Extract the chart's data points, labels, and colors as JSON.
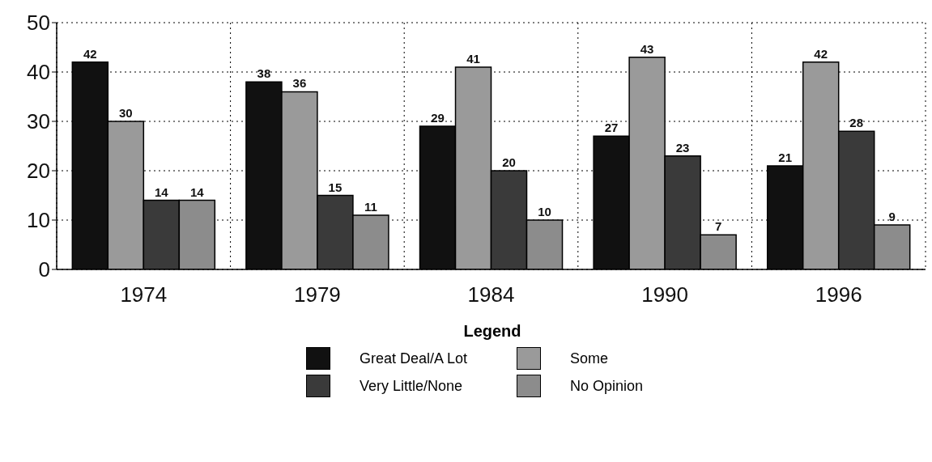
{
  "chart_data": {
    "type": "bar",
    "categories": [
      "1974",
      "1979",
      "1984",
      "1990",
      "1996"
    ],
    "series": [
      {
        "name": "Great Deal/A Lot",
        "color": "#111111",
        "values": [
          42,
          38,
          29,
          27,
          21
        ]
      },
      {
        "name": "Some",
        "color": "#9a9a9a",
        "values": [
          30,
          36,
          41,
          43,
          42
        ]
      },
      {
        "name": "Very Little/None",
        "color": "#3a3a3a",
        "values": [
          14,
          15,
          20,
          23,
          28
        ]
      },
      {
        "name": "No Opinion",
        "color": "#8c8c8c",
        "values": [
          14,
          11,
          10,
          7,
          9
        ]
      }
    ],
    "ylim": [
      0,
      50
    ],
    "yticks": [
      0,
      10,
      20,
      30,
      40,
      50
    ],
    "grid": true,
    "data_labels": true,
    "legend": "bottom",
    "legend_title": "Legend"
  }
}
